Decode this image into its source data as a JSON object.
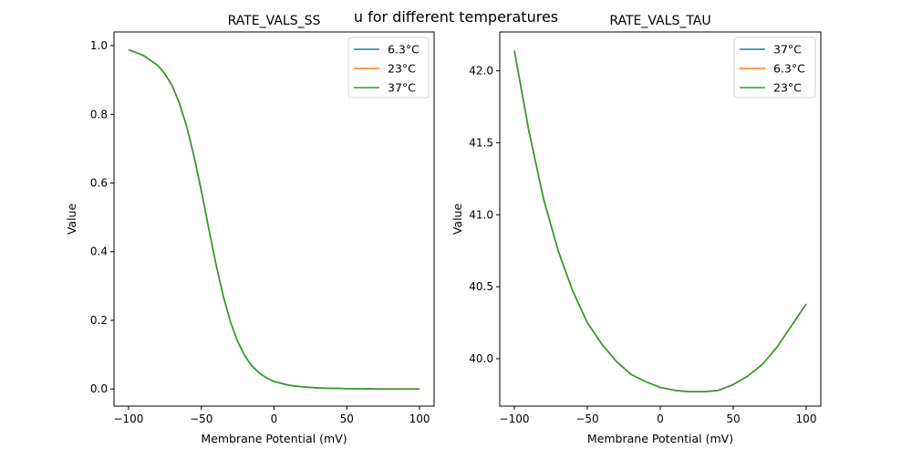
{
  "figure": {
    "suptitle": "u for different temperatures"
  },
  "chart_data": [
    {
      "type": "line",
      "title": "RATE_VALS_SS",
      "xlabel": "Membrane Potential (mV)",
      "ylabel": "Value",
      "xlim": [
        -110,
        110
      ],
      "ylim": [
        -0.05,
        1.04
      ],
      "xticks": [
        -100,
        -50,
        0,
        50,
        100
      ],
      "xtick_labels": [
        "−100",
        "−50",
        "0",
        "50",
        "100"
      ],
      "yticks": [
        0.0,
        0.2,
        0.4,
        0.6,
        0.8,
        1.0
      ],
      "ytick_labels": [
        "0.0",
        "0.2",
        "0.4",
        "0.6",
        "0.8",
        "1.0"
      ],
      "grid": false,
      "legend_position": "top-right",
      "x": [
        -100,
        -90,
        -80,
        -75,
        -70,
        -65,
        -60,
        -55,
        -50,
        -45,
        -40,
        -35,
        -30,
        -25,
        -20,
        -15,
        -10,
        -5,
        0,
        10,
        20,
        30,
        40,
        50,
        60,
        70,
        80,
        90,
        100
      ],
      "series": [
        {
          "name": "6.3°C",
          "color": "#1f77b4",
          "values": [
            0.988,
            0.972,
            0.943,
            0.918,
            0.883,
            0.832,
            0.764,
            0.678,
            0.578,
            0.47,
            0.365,
            0.272,
            0.196,
            0.138,
            0.096,
            0.066,
            0.046,
            0.032,
            0.022,
            0.011,
            0.006,
            0.003,
            0.002,
            0.001,
            0.001,
            0.0,
            0.0,
            0.0,
            0.0
          ]
        },
        {
          "name": "23°C",
          "color": "#ff7f0e",
          "values": [
            0.988,
            0.972,
            0.943,
            0.918,
            0.883,
            0.832,
            0.764,
            0.678,
            0.578,
            0.47,
            0.365,
            0.272,
            0.196,
            0.138,
            0.096,
            0.066,
            0.046,
            0.032,
            0.022,
            0.011,
            0.006,
            0.003,
            0.002,
            0.001,
            0.001,
            0.0,
            0.0,
            0.0,
            0.0
          ]
        },
        {
          "name": "37°C",
          "color": "#2ca02c",
          "values": [
            0.988,
            0.972,
            0.943,
            0.918,
            0.883,
            0.832,
            0.764,
            0.678,
            0.578,
            0.47,
            0.365,
            0.272,
            0.196,
            0.138,
            0.096,
            0.066,
            0.046,
            0.032,
            0.022,
            0.011,
            0.006,
            0.003,
            0.002,
            0.001,
            0.001,
            0.0,
            0.0,
            0.0,
            0.0
          ]
        }
      ]
    },
    {
      "type": "line",
      "title": "RATE_VALS_TAU",
      "xlabel": "Membrane Potential (mV)",
      "ylabel": "Value",
      "xlim": [
        -110,
        110
      ],
      "ylim": [
        39.67,
        42.27
      ],
      "xticks": [
        -100,
        -50,
        0,
        50,
        100
      ],
      "xtick_labels": [
        "−100",
        "−50",
        "0",
        "50",
        "100"
      ],
      "yticks": [
        40.0,
        40.5,
        41.0,
        41.5,
        42.0
      ],
      "ytick_labels": [
        "40.0",
        "40.5",
        "41.0",
        "41.5",
        "42.0"
      ],
      "grid": false,
      "legend_position": "top-right",
      "x": [
        -100,
        -90,
        -80,
        -70,
        -60,
        -50,
        -40,
        -30,
        -20,
        -10,
        0,
        10,
        20,
        30,
        40,
        50,
        60,
        70,
        80,
        90,
        100
      ],
      "series": [
        {
          "name": "37°C",
          "color": "#1f77b4",
          "values": [
            42.14,
            41.58,
            41.11,
            40.75,
            40.47,
            40.25,
            40.1,
            39.98,
            39.89,
            39.84,
            39.8,
            39.78,
            39.77,
            39.77,
            39.78,
            39.82,
            39.88,
            39.96,
            40.08,
            40.23,
            40.38
          ]
        },
        {
          "name": "6.3°C",
          "color": "#ff7f0e",
          "values": [
            42.14,
            41.58,
            41.11,
            40.75,
            40.47,
            40.25,
            40.1,
            39.98,
            39.89,
            39.84,
            39.8,
            39.78,
            39.77,
            39.77,
            39.78,
            39.82,
            39.88,
            39.96,
            40.08,
            40.23,
            40.38
          ]
        },
        {
          "name": "23°C",
          "color": "#2ca02c",
          "values": [
            42.14,
            41.58,
            41.11,
            40.75,
            40.47,
            40.25,
            40.1,
            39.98,
            39.89,
            39.84,
            39.8,
            39.78,
            39.77,
            39.77,
            39.78,
            39.82,
            39.88,
            39.96,
            40.08,
            40.23,
            40.38
          ]
        }
      ]
    }
  ]
}
